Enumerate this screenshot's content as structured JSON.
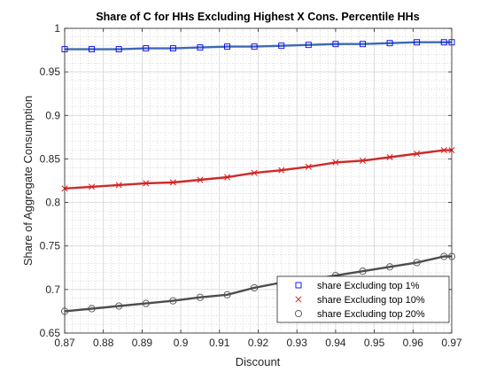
{
  "chart_data": {
    "type": "line",
    "title": "Share of C for HHs Excluding Highest X Cons. Percentile HHs",
    "xlabel": "Discount",
    "ylabel": "Share of Aggregate Consumption",
    "xlim": [
      0.87,
      0.97
    ],
    "ylim": [
      0.65,
      1.0
    ],
    "xticks": [
      "0.87",
      "0.88",
      "0.89",
      "0.9",
      "0.91",
      "0.92",
      "0.93",
      "0.94",
      "0.95",
      "0.96",
      "0.97"
    ],
    "yticks": [
      "0.65",
      "0.7",
      "0.75",
      "0.8",
      "0.85",
      "0.9",
      "0.95",
      "1"
    ],
    "grid": "on (major and minor)",
    "legend_position": "bottom-right",
    "x": [
      0.87,
      0.877,
      0.884,
      0.891,
      0.898,
      0.905,
      0.912,
      0.919,
      0.926,
      0.933,
      0.94,
      0.947,
      0.954,
      0.961,
      0.968
    ],
    "series": [
      {
        "name": "share Excluding top 1%",
        "marker": "square",
        "color": "#0000ff",
        "line_color": "#3f69b4",
        "values": [
          0.976,
          0.976,
          0.976,
          0.977,
          0.977,
          0.978,
          0.979,
          0.979,
          0.98,
          0.981,
          0.982,
          0.982,
          0.983,
          0.984,
          0.984
        ]
      },
      {
        "name": "share Excluding top 10%",
        "marker": "x",
        "color": "#e41a1c",
        "line_color": "#cc2a2a",
        "values": [
          0.816,
          0.818,
          0.82,
          0.822,
          0.823,
          0.826,
          0.829,
          0.834,
          0.837,
          0.841,
          0.846,
          0.848,
          0.852,
          0.856,
          0.86
        ]
      },
      {
        "name": "share Excluding top 20%",
        "marker": "circle",
        "color": "#505050",
        "line_color": "#4d4d4d",
        "values": [
          0.675,
          0.678,
          0.681,
          0.684,
          0.687,
          0.691,
          0.694,
          0.702,
          0.708,
          0.711,
          0.716,
          0.721,
          0.726,
          0.731,
          0.738
        ]
      }
    ]
  }
}
